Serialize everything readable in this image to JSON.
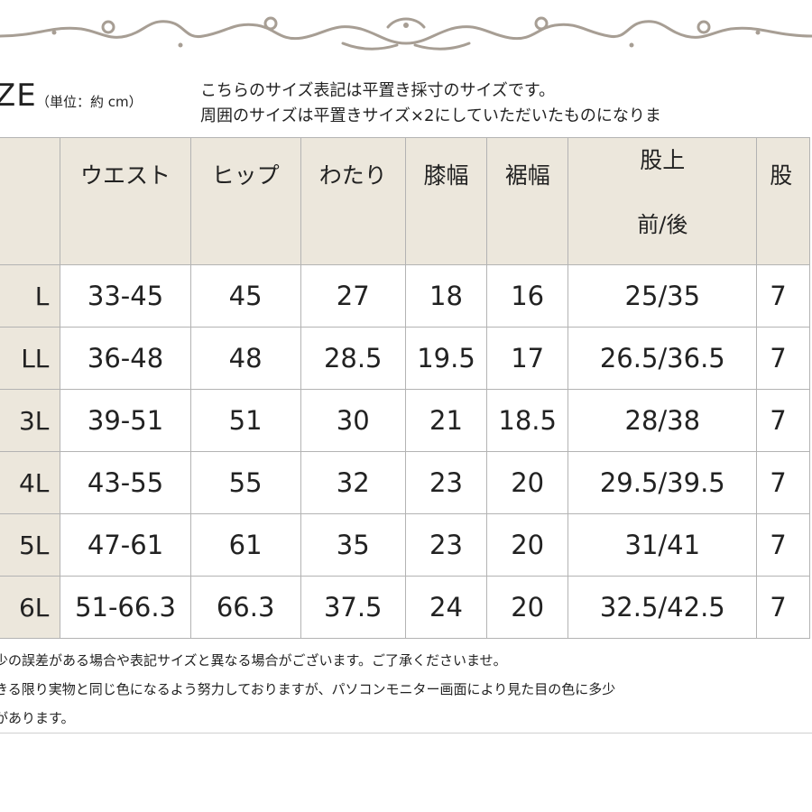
{
  "header": {
    "title": "ZE",
    "unit": "（単位：約 cm）",
    "note_line1": "こちらのサイズ表記は平置き採寸のサイズです。",
    "note_line2": "周囲のサイズは平置きサイズ×2にしていただいたものになりま"
  },
  "table": {
    "columns": [
      {
        "top": "ウエスト"
      },
      {
        "top": "ヒップ"
      },
      {
        "top": "わたり"
      },
      {
        "top": "膝幅"
      },
      {
        "top": "裾幅"
      },
      {
        "top": "股上",
        "bottom": "前/後"
      },
      {
        "top": "股"
      }
    ],
    "rows": [
      {
        "size": "L",
        "cells": [
          "33-45",
          "45",
          "27",
          "18",
          "16",
          "25/35",
          "7"
        ]
      },
      {
        "size": "LL",
        "cells": [
          "36-48",
          "48",
          "28.5",
          "19.5",
          "17",
          "26.5/36.5",
          "7"
        ]
      },
      {
        "size": "3L",
        "cells": [
          "39-51",
          "51",
          "30",
          "21",
          "18.5",
          "28/38",
          "7"
        ]
      },
      {
        "size": "4L",
        "cells": [
          "43-55",
          "55",
          "32",
          "23",
          "20",
          "29.5/39.5",
          "7"
        ]
      },
      {
        "size": "5L",
        "cells": [
          "47-61",
          "61",
          "35",
          "23",
          "20",
          "31/41",
          "7"
        ]
      },
      {
        "size": "6L",
        "cells": [
          "51-66.3",
          "66.3",
          "37.5",
          "24",
          "20",
          "32.5/42.5",
          "7"
        ]
      }
    ]
  },
  "footer": {
    "line1": "少の誤差がある場合や表記サイズと異なる場合がございます。ご了承くださいませ。",
    "line2": "きる限り実物と同じ色になるよう努力しておりますが、パソコンモニター画面により見た目の色に多少",
    "line3": "があります。"
  },
  "colors": {
    "header_bg": "#ece7dc",
    "border": "#b3b3b3",
    "ornament": "#a79e94"
  }
}
